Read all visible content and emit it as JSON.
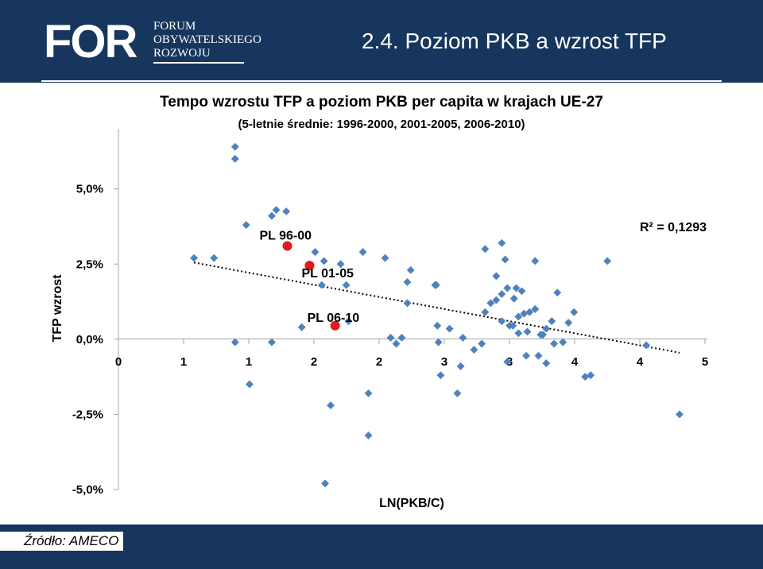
{
  "header": {
    "logo_mark": "FOR",
    "logo_lines": [
      "FORUM",
      "OBYWATELSKIEGO",
      "ROZWOJU"
    ],
    "title": "2.4. Poziom PKB a wzrost TFP",
    "background_color": "#17365d"
  },
  "footer": {
    "source": "Źródło: AMECO"
  },
  "chart_data": {
    "type": "scatter",
    "title": "Tempo wzrostu TFP a poziom PKB per capita w krajach UE-27",
    "subtitle": "(5-letnie średnie: 1996-2000, 2001-2005, 2006-2010)",
    "xlabel": "LN(PKB/C)",
    "ylabel": "TFP wzrost",
    "xlim": [
      0,
      5.3
    ],
    "ylim": [
      -0.05,
      0.07
    ],
    "x_tick_labels": [
      "0",
      "1",
      "1",
      "2",
      "2",
      "3",
      "3",
      "4",
      "4",
      "5"
    ],
    "y_ticks": [
      {
        "value": 0.05,
        "label": "5,0%"
      },
      {
        "value": 0.025,
        "label": "2,5%"
      },
      {
        "value": 0.0,
        "label": "0,0%"
      },
      {
        "value": -0.025,
        "label": "-2,5%"
      },
      {
        "value": -0.05,
        "label": "-5,0%"
      }
    ],
    "grid": false,
    "marker_color": "#4f81bd",
    "highlight_color": "#e31a1c",
    "series": [
      {
        "points": [
          [
            0.68,
            0.027
          ],
          [
            0.86,
            0.027
          ],
          [
            1.05,
            0.064
          ],
          [
            1.05,
            0.06
          ],
          [
            1.05,
            -0.001
          ],
          [
            1.15,
            0.038
          ],
          [
            1.18,
            -0.015
          ],
          [
            1.38,
            0.041
          ],
          [
            1.38,
            -0.001
          ],
          [
            1.42,
            0.043
          ],
          [
            1.51,
            0.0425
          ],
          [
            1.65,
            0.004
          ],
          [
            1.77,
            0.029
          ],
          [
            1.83,
            0.018
          ],
          [
            1.85,
            0.026
          ],
          [
            1.86,
            -0.048
          ],
          [
            1.91,
            -0.022
          ],
          [
            2.0,
            0.025
          ],
          [
            2.05,
            0.018
          ],
          [
            2.07,
            0.006
          ],
          [
            2.2,
            0.029
          ],
          [
            2.25,
            -0.018
          ],
          [
            2.25,
            -0.032
          ],
          [
            2.4,
            0.027
          ],
          [
            2.45,
            0.0005
          ],
          [
            2.5,
            -0.0015
          ],
          [
            2.55,
            0.0005
          ],
          [
            2.6,
            0.012
          ],
          [
            2.6,
            0.019
          ],
          [
            2.63,
            0.023
          ],
          [
            2.85,
            0.018
          ],
          [
            2.86,
            0.018
          ],
          [
            2.87,
            0.0045
          ],
          [
            2.88,
            -0.001
          ],
          [
            2.9,
            -0.012
          ],
          [
            2.98,
            0.0035
          ],
          [
            3.05,
            -0.018
          ],
          [
            3.08,
            -0.009
          ],
          [
            3.1,
            0.0005
          ],
          [
            3.2,
            -0.0035
          ],
          [
            3.27,
            -0.0015
          ],
          [
            3.3,
            0.03
          ],
          [
            3.3,
            0.009
          ],
          [
            3.35,
            0.012
          ],
          [
            3.4,
            0.013
          ],
          [
            3.4,
            0.021
          ],
          [
            3.45,
            0.015
          ],
          [
            3.45,
            0.032
          ],
          [
            3.45,
            0.006
          ],
          [
            3.48,
            0.0265
          ],
          [
            3.5,
            0.017
          ],
          [
            3.5,
            -0.0075
          ],
          [
            3.52,
            0.0045
          ],
          [
            3.55,
            0.0045
          ],
          [
            3.56,
            0.0135
          ],
          [
            3.58,
            0.017
          ],
          [
            3.6,
            0.0075
          ],
          [
            3.6,
            0.002
          ],
          [
            3.63,
            0.016
          ],
          [
            3.65,
            0.0085
          ],
          [
            3.67,
            -0.0055
          ],
          [
            3.68,
            0.0025
          ],
          [
            3.7,
            0.009
          ],
          [
            3.75,
            0.026
          ],
          [
            3.75,
            0.01
          ],
          [
            3.78,
            -0.0055
          ],
          [
            3.8,
            0.0015
          ],
          [
            3.82,
            0.0015
          ],
          [
            3.85,
            0.0035
          ],
          [
            3.85,
            -0.008
          ],
          [
            3.9,
            0.006
          ],
          [
            3.92,
            -0.0015
          ],
          [
            3.95,
            0.0155
          ],
          [
            4.0,
            -0.001
          ],
          [
            4.05,
            0.0055
          ],
          [
            4.1,
            0.009
          ],
          [
            4.2,
            -0.0125
          ],
          [
            4.25,
            -0.012
          ],
          [
            4.4,
            0.026
          ],
          [
            4.75,
            -0.002
          ],
          [
            5.05,
            -0.025
          ]
        ]
      },
      {
        "highlight": true,
        "points": [
          {
            "x": 1.52,
            "y": 0.031,
            "label": "PL 96-00"
          },
          {
            "x": 1.72,
            "y": 0.0245,
            "label": "PL 01-05"
          },
          {
            "x": 1.95,
            "y": 0.0045,
            "label": "PL 06-10"
          }
        ]
      }
    ],
    "trendline": {
      "style": "dotted",
      "x": [
        0.68,
        5.05
      ],
      "y": [
        0.0255,
        -0.0045
      ]
    },
    "annotations": [
      {
        "text": "R² = 0,1293",
        "position": "top-right"
      }
    ]
  }
}
